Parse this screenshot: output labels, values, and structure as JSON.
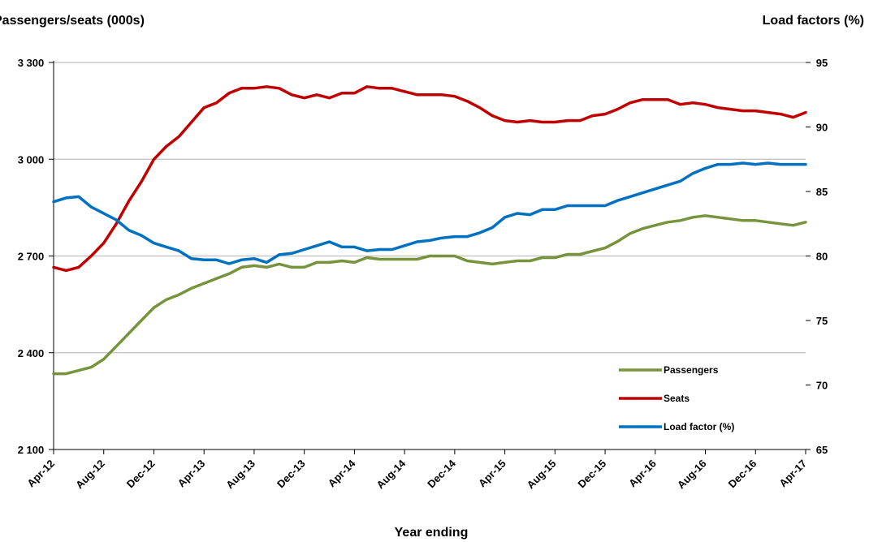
{
  "chart_data": {
    "type": "line",
    "left_axis_title": "Passengers/seats (000s)",
    "right_axis_title": "Load factors (%)",
    "xlabel": "Year ending",
    "x_ticks": [
      "Apr-12",
      "Aug-12",
      "Dec-12",
      "Apr-13",
      "Aug-13",
      "Dec-13",
      "Apr-14",
      "Aug-14",
      "Dec-14",
      "Apr-15",
      "Aug-15",
      "Dec-15",
      "Apr-16",
      "Aug-16",
      "Dec-16",
      "Apr-17"
    ],
    "x": [
      "Apr-12",
      "May-12",
      "Jun-12",
      "Jul-12",
      "Aug-12",
      "Sep-12",
      "Oct-12",
      "Nov-12",
      "Dec-12",
      "Jan-13",
      "Feb-13",
      "Mar-13",
      "Apr-13",
      "May-13",
      "Jun-13",
      "Jul-13",
      "Aug-13",
      "Sep-13",
      "Oct-13",
      "Nov-13",
      "Dec-13",
      "Jan-14",
      "Feb-14",
      "Mar-14",
      "Apr-14",
      "May-14",
      "Jun-14",
      "Jul-14",
      "Aug-14",
      "Sep-14",
      "Oct-14",
      "Nov-14",
      "Dec-14",
      "Jan-15",
      "Feb-15",
      "Mar-15",
      "Apr-15",
      "May-15",
      "Jun-15",
      "Jul-15",
      "Aug-15",
      "Sep-15",
      "Oct-15",
      "Nov-15",
      "Dec-15",
      "Jan-16",
      "Feb-16",
      "Mar-16",
      "Apr-16",
      "May-16",
      "Jun-16",
      "Jul-16",
      "Aug-16",
      "Sep-16",
      "Oct-16",
      "Nov-16",
      "Dec-16",
      "Jan-17",
      "Feb-17",
      "Mar-17",
      "Apr-17"
    ],
    "y_left": {
      "min": 2100,
      "max": 3300,
      "ticks": [
        2100,
        2400,
        2700,
        3000,
        3300
      ],
      "tick_labels": [
        "2 100",
        "2 400",
        "2 700",
        "3 000",
        "3 300"
      ]
    },
    "y_right": {
      "min": 65,
      "max": 95,
      "ticks": [
        65,
        70,
        75,
        80,
        85,
        90,
        95
      ],
      "tick_labels": [
        "65",
        "70",
        "75",
        "80",
        "85",
        "90",
        "95"
      ]
    },
    "grid": "horizontal",
    "legend_position": "bottom-right",
    "series": [
      {
        "name": "Passengers",
        "axis": "left",
        "color": "#77933c",
        "values": [
          2335,
          2335,
          2345,
          2355,
          2380,
          2420,
          2460,
          2500,
          2540,
          2565,
          2580,
          2600,
          2615,
          2630,
          2645,
          2665,
          2670,
          2665,
          2675,
          2665,
          2665,
          2680,
          2680,
          2685,
          2680,
          2695,
          2690,
          2690,
          2690,
          2690,
          2700,
          2700,
          2700,
          2685,
          2680,
          2675,
          2680,
          2685,
          2685,
          2695,
          2695,
          2705,
          2705,
          2715,
          2725,
          2745,
          2770,
          2785,
          2795,
          2805,
          2810,
          2820,
          2825,
          2820,
          2815,
          2810,
          2810,
          2805,
          2800,
          2795,
          2805
        ]
      },
      {
        "name": "Seats",
        "axis": "left",
        "color": "#c00000",
        "values": [
          2665,
          2655,
          2665,
          2700,
          2740,
          2800,
          2870,
          2930,
          3000,
          3040,
          3070,
          3115,
          3160,
          3175,
          3205,
          3220,
          3220,
          3225,
          3220,
          3200,
          3190,
          3200,
          3190,
          3205,
          3205,
          3225,
          3220,
          3220,
          3210,
          3200,
          3200,
          3200,
          3195,
          3180,
          3160,
          3135,
          3120,
          3115,
          3120,
          3115,
          3115,
          3120,
          3120,
          3135,
          3140,
          3155,
          3175,
          3185,
          3185,
          3185,
          3170,
          3175,
          3170,
          3160,
          3155,
          3150,
          3150,
          3145,
          3140,
          3130,
          3145
        ]
      },
      {
        "name": "Load factor (%)",
        "axis": "right",
        "color": "#0070c0",
        "values": [
          84.2,
          84.5,
          84.6,
          83.8,
          83.3,
          82.8,
          82.0,
          81.6,
          81.0,
          80.7,
          80.4,
          79.8,
          79.7,
          79.7,
          79.4,
          79.7,
          79.8,
          79.5,
          80.1,
          80.2,
          80.5,
          80.8,
          81.1,
          80.7,
          80.7,
          80.4,
          80.5,
          80.5,
          80.8,
          81.1,
          81.2,
          81.4,
          81.5,
          81.5,
          81.8,
          82.2,
          83.0,
          83.3,
          83.2,
          83.6,
          83.6,
          83.9,
          83.9,
          83.9,
          83.9,
          84.3,
          84.6,
          84.9,
          85.2,
          85.5,
          85.8,
          86.4,
          86.8,
          87.1,
          87.1,
          87.2,
          87.1,
          87.2,
          87.1,
          87.1,
          87.1
        ]
      }
    ]
  }
}
